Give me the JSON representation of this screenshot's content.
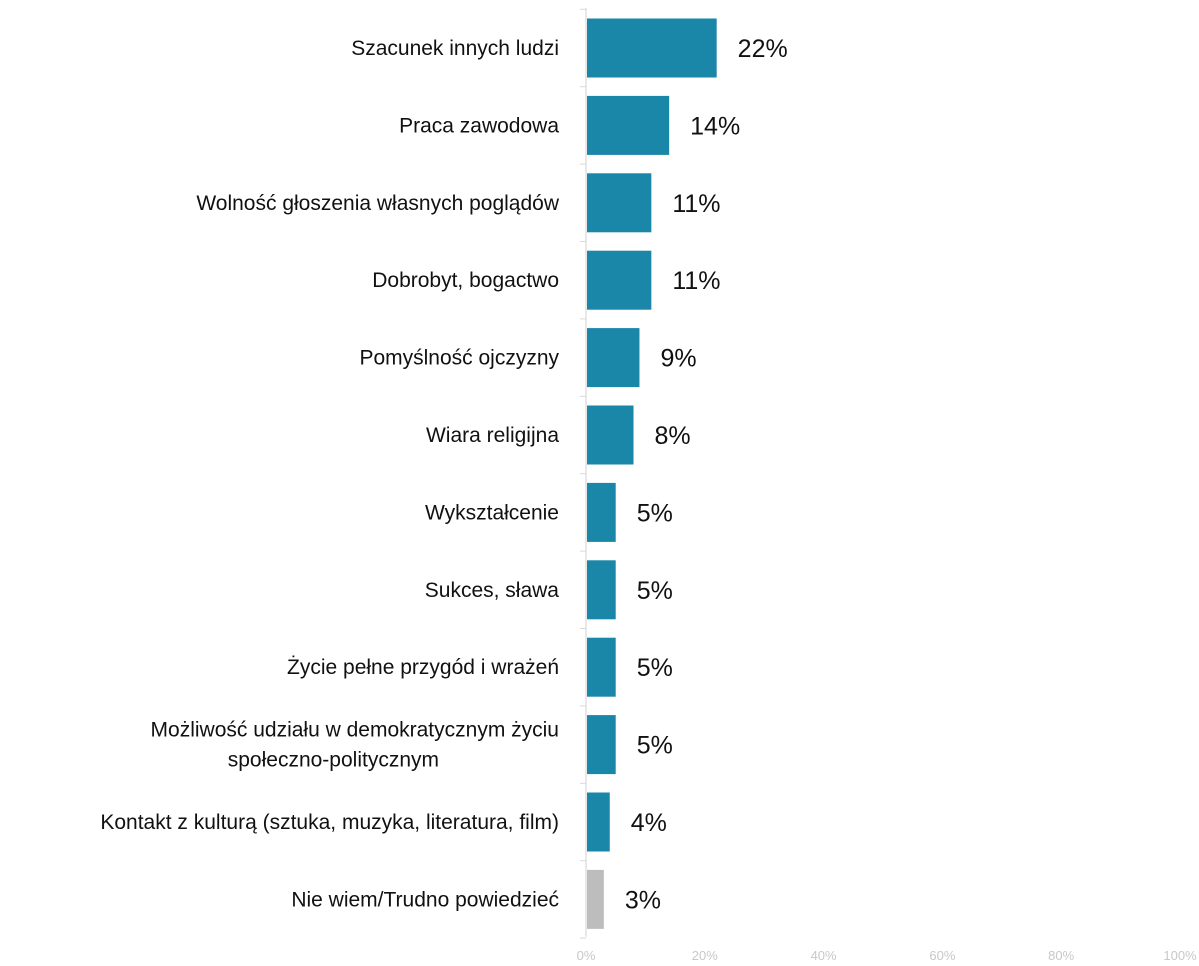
{
  "chart_data": {
    "type": "bar",
    "orientation": "horizontal",
    "title": "",
    "xlabel": "",
    "ylabel": "",
    "xlim": [
      0,
      100
    ],
    "grid": false,
    "legend": "none",
    "categories": [
      "Szacunek innych ludzi",
      "Praca zawodowa",
      "Wolność głoszenia własnych poglądów",
      "Dobrobyt, bogactwo",
      "Pomyślność ojczyzny",
      "Wiara religijna",
      "Wykształcenie",
      "Sukces, sława",
      "Życie pełne przygód i wrażeń",
      "Możliwość udziału w demokratycznym życiu\nspołeczno-politycznym",
      "Kontakt z kulturą (sztuka, muzyka, literatura, film)",
      "Nie wiem/Trudno powiedzieć"
    ],
    "values": [
      22,
      14,
      11,
      11,
      9,
      8,
      5,
      5,
      5,
      5,
      4,
      3
    ],
    "value_labels": [
      "22%",
      "14%",
      "11%",
      "11%",
      "9%",
      "8%",
      "5%",
      "5%",
      "5%",
      "5%",
      "4%",
      "3%"
    ],
    "bar_colors": [
      "#1a86a8",
      "#1a86a8",
      "#1a86a8",
      "#1a86a8",
      "#1a86a8",
      "#1a86a8",
      "#1a86a8",
      "#1a86a8",
      "#1a86a8",
      "#1a86a8",
      "#1a86a8",
      "#bdbdbd"
    ],
    "x_ticks": [
      0,
      20,
      40,
      60,
      80,
      100
    ],
    "x_tick_labels": [
      "0%",
      "20%",
      "40%",
      "60%",
      "80%",
      "100%"
    ]
  },
  "colors": {
    "primary_bar": "#1a86a8",
    "dont_know_bar": "#bdbdbd",
    "axis_line": "#d9d9d9",
    "tick_text": "#c8c8c8"
  }
}
